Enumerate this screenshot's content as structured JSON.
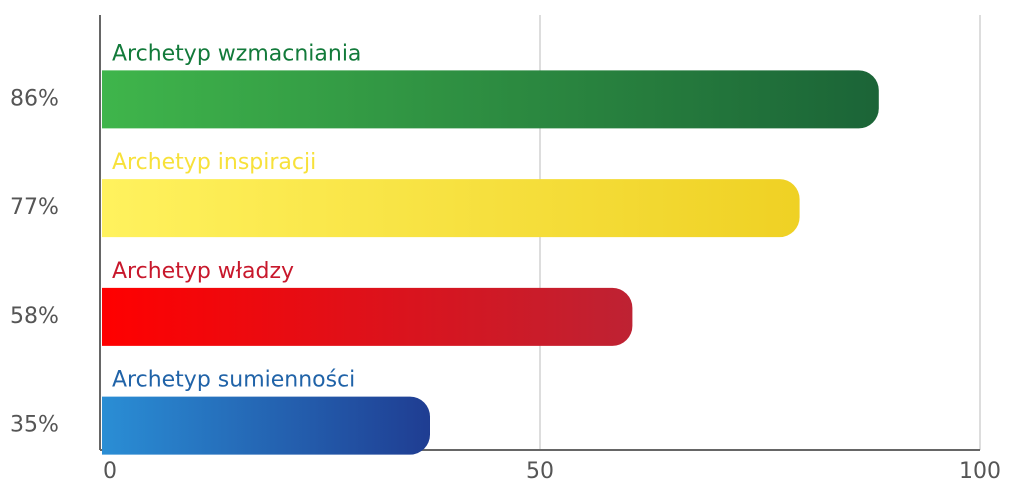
{
  "chart_data": {
    "type": "hbar",
    "categories": [
      "Archetyp wzmacniania",
      "Archetyp inspiracji",
      "Archetyp władzy",
      "Archetyp sumienności"
    ],
    "values": [
      86,
      77,
      58,
      35
    ],
    "value_labels": [
      "86%",
      "77%",
      "58%",
      "35%"
    ],
    "colors": [
      [
        "#3fb54b",
        "#1b6437"
      ],
      [
        "#fff25e",
        "#efd124"
      ],
      [
        "#ff0000",
        "#be2233"
      ],
      [
        "#2a8ed5",
        "#1f3d92"
      ]
    ],
    "label_colors": [
      "#127a3a",
      "#f7e13a",
      "#c8182c",
      "#2063a8"
    ],
    "xlim": [
      0,
      100
    ],
    "xticks": [
      0,
      50,
      100
    ],
    "grid": true
  }
}
